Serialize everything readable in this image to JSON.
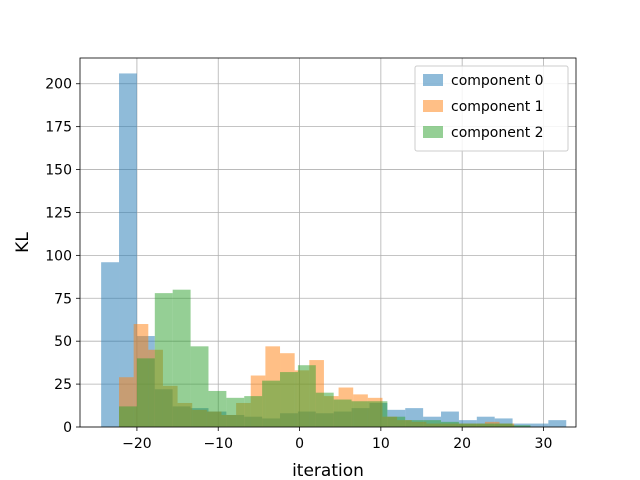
{
  "chart_data": {
    "type": "bar",
    "histogram": true,
    "xlabel": "iteration",
    "ylabel": "KL",
    "xlim": [
      -27,
      34
    ],
    "ylim": [
      0,
      215
    ],
    "xticks": [
      -20,
      -10,
      0,
      10,
      20,
      30
    ],
    "xtick_labels": [
      "−20",
      "−10",
      "0",
      "10",
      "20",
      "30"
    ],
    "yticks": [
      0,
      25,
      50,
      75,
      100,
      125,
      150,
      175,
      200
    ],
    "ytick_labels": [
      "0",
      "25",
      "50",
      "75",
      "100",
      "125",
      "150",
      "175",
      "200"
    ],
    "grid": true,
    "legend_position": "top-right",
    "series": [
      {
        "name": "component 0",
        "color": "#1f77b4",
        "opacity": 0.5,
        "bin_edges": [
          -24.4,
          -22.2,
          -20.0,
          -17.8,
          -15.6,
          -13.4,
          -11.2,
          -9.0,
          -6.8,
          -4.6,
          -2.4,
          -0.2,
          2.0,
          4.2,
          6.4,
          8.6,
          10.8,
          13.0,
          15.2,
          17.4,
          19.6,
          21.8,
          24.0,
          26.2,
          28.4,
          30.6,
          32.8
        ],
        "counts": [
          96,
          206,
          53,
          22,
          12,
          11,
          9,
          7,
          6,
          5,
          8,
          9,
          8,
          9,
          11,
          14,
          10,
          11,
          6,
          9,
          4,
          6,
          5,
          2,
          2,
          4
        ]
      },
      {
        "name": "component 1",
        "color": "#ff7f0e",
        "opacity": 0.5,
        "bin_edges": [
          -22.2,
          -20.4,
          -18.6,
          -16.8,
          -15.0,
          -13.2,
          -11.4,
          -9.6,
          -7.8,
          -6.0,
          -4.2,
          -2.4,
          -0.6,
          1.2,
          3.0,
          4.8,
          6.6,
          8.4,
          10.2,
          12.0,
          13.8,
          15.6,
          17.4,
          19.2,
          21.0,
          22.8,
          24.6,
          26.4
        ],
        "counts": [
          29,
          60,
          45,
          24,
          14,
          10,
          9,
          7,
          14,
          30,
          47,
          43,
          33,
          39,
          18,
          23,
          19,
          17,
          6,
          4,
          3,
          2,
          2,
          2,
          2,
          3,
          2
        ]
      },
      {
        "name": "component 2",
        "color": "#2ca02c",
        "opacity": 0.5,
        "bin_edges": [
          -22.2,
          -20.0,
          -17.8,
          -15.6,
          -13.4,
          -11.2,
          -9.0,
          -6.8,
          -4.6,
          -2.4,
          -0.2,
          2.0,
          4.2,
          6.4,
          8.6,
          10.8,
          13.0,
          15.2,
          17.4,
          19.6,
          21.8,
          24.0,
          26.2,
          28.4
        ],
        "counts": [
          12,
          40,
          78,
          80,
          47,
          21,
          17,
          18,
          27,
          32,
          36,
          20,
          16,
          15,
          15,
          6,
          4,
          4,
          3,
          2,
          2,
          2,
          1
        ]
      }
    ]
  }
}
